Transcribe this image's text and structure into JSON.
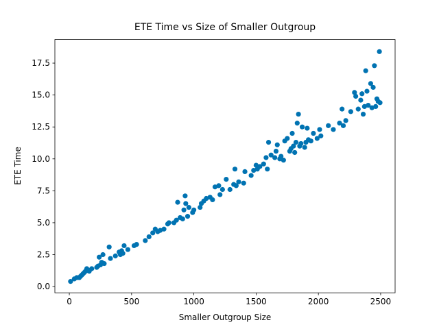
{
  "chart_data": {
    "type": "scatter",
    "title": "ETE Time vs Size of Smaller Outgroup",
    "xlabel": "Smaller Outgroup Size",
    "ylabel": "ETE Time",
    "color": "#0173b2",
    "xlim": [
      -116,
      2616
    ],
    "ylim": [
      -0.49,
      19.35
    ],
    "xticks": [
      0,
      500,
      1000,
      1500,
      2000,
      2500
    ],
    "yticks": [
      {
        "value": 0,
        "label": "0.0"
      },
      2.5,
      {
        "value": 5,
        "label": "5.0"
      },
      7.5,
      {
        "value": 10,
        "label": "10.0"
      },
      12.5,
      {
        "value": 15,
        "label": "15.0"
      },
      17.5
    ],
    "x": [
      10,
      40,
      60,
      80,
      90,
      100,
      110,
      120,
      130,
      140,
      150,
      160,
      180,
      220,
      230,
      240,
      250,
      260,
      270,
      280,
      320,
      330,
      370,
      400,
      410,
      420,
      430,
      440,
      470,
      520,
      540,
      610,
      640,
      670,
      690,
      710,
      730,
      760,
      790,
      800,
      840,
      860,
      870,
      890,
      910,
      920,
      930,
      935,
      950,
      960,
      990,
      1000,
      1050,
      1060,
      1080,
      1100,
      1130,
      1150,
      1170,
      1200,
      1210,
      1230,
      1260,
      1290,
      1320,
      1330,
      1340,
      1360,
      1400,
      1410,
      1460,
      1480,
      1500,
      1510,
      1530,
      1560,
      1580,
      1590,
      1600,
      1620,
      1650,
      1660,
      1670,
      1690,
      1700,
      1720,
      1730,
      1750,
      1770,
      1780,
      1790,
      1800,
      1810,
      1820,
      1830,
      1840,
      1850,
      1860,
      1870,
      1890,
      1900,
      1910,
      1920,
      1940,
      1960,
      1990,
      2010,
      2020,
      2080,
      2120,
      2170,
      2190,
      2200,
      2220,
      2260,
      2290,
      2300,
      2320,
      2340,
      2350,
      2360,
      2370,
      2380,
      2390,
      2400,
      2420,
      2430,
      2440,
      2450,
      2460,
      2470,
      2480,
      2490,
      2495
    ],
    "values": [
      0.4,
      0.6,
      0.7,
      0.7,
      0.8,
      0.9,
      1.0,
      1.1,
      1.2,
      1.4,
      1.3,
      1.2,
      1.4,
      1.5,
      1.6,
      2.3,
      1.7,
      1.9,
      2.5,
      1.8,
      3.1,
      2.2,
      2.4,
      2.7,
      2.5,
      2.8,
      2.6,
      3.2,
      2.9,
      3.2,
      3.3,
      3.6,
      3.9,
      4.2,
      4.5,
      4.3,
      4.4,
      4.5,
      4.9,
      5.0,
      5.0,
      5.2,
      6.6,
      5.4,
      5.3,
      6.0,
      7.1,
      6.5,
      5.5,
      6.2,
      5.8,
      6.0,
      6.2,
      6.5,
      6.7,
      6.9,
      7.0,
      6.8,
      7.8,
      7.9,
      7.2,
      7.6,
      8.4,
      7.6,
      8.0,
      9.2,
      7.9,
      8.2,
      8.1,
      9.0,
      8.7,
      9.1,
      9.5,
      9.2,
      9.4,
      9.6,
      10.1,
      9.2,
      11.3,
      10.3,
      10.1,
      10.6,
      11.1,
      10.0,
      10.2,
      9.9,
      11.4,
      11.6,
      10.6,
      10.8,
      12.0,
      11.0,
      10.5,
      11.3,
      12.8,
      13.5,
      11.0,
      11.2,
      12.5,
      10.9,
      11.3,
      12.4,
      11.5,
      11.4,
      12.0,
      11.6,
      12.3,
      11.8,
      12.6,
      12.3,
      12.8,
      13.9,
      12.6,
      13.0,
      13.7,
      15.2,
      14.9,
      13.9,
      14.6,
      15.1,
      13.5,
      14.1,
      16.9,
      15.3,
      14.2,
      15.9,
      14.0,
      15.6,
      17.3,
      14.1,
      14.7,
      14.5,
      18.4,
      14.4
    ]
  }
}
